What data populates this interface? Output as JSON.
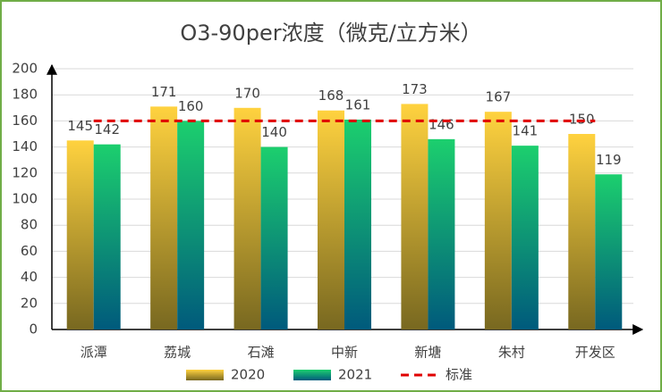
{
  "chart_data": {
    "type": "bar",
    "title": "O3-90per浓度（微克/立方米）",
    "categories": [
      "派潭",
      "荔城",
      "石滩",
      "中新",
      "新塘",
      "朱村",
      "开发区"
    ],
    "series": [
      {
        "name": "2020",
        "color": "#f5c842",
        "values": [
          145,
          171,
          170,
          168,
          173,
          167,
          150
        ]
      },
      {
        "name": "2021",
        "color": "#18c86e",
        "values": [
          142,
          160,
          140,
          161,
          146,
          141,
          119
        ]
      },
      {
        "name": "标准",
        "type": "line",
        "color": "#e00000",
        "values": [
          160,
          160,
          160,
          160,
          160,
          160,
          160
        ]
      }
    ],
    "ylim": [
      0,
      200
    ],
    "yticks": [
      0,
      20,
      40,
      60,
      80,
      100,
      120,
      140,
      160,
      180,
      200
    ],
    "grid": true
  }
}
